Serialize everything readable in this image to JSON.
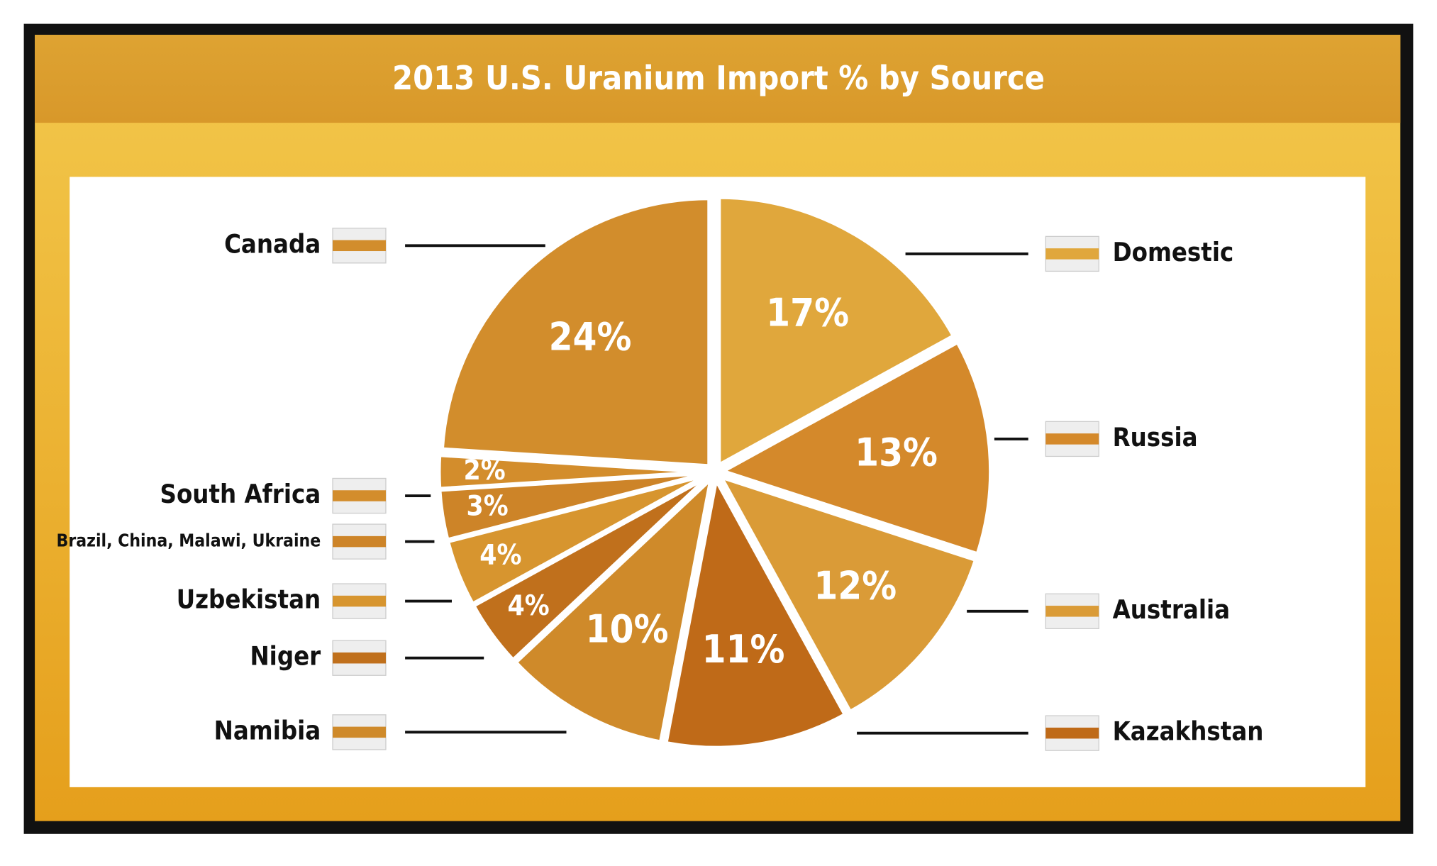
{
  "chart_data": {
    "type": "pie",
    "title": "2013 U.S. Uranium Import % by Source",
    "categories": [
      "Domestic",
      "Russia",
      "Australia",
      "Kazakhstan",
      "Namibia",
      "Niger",
      "Uzbekistan",
      "Brazil, China, Malawi, Ukraine",
      "South Africa",
      "Canada"
    ],
    "values": [
      17,
      13,
      12,
      11,
      10,
      4,
      4,
      3,
      2,
      24
    ],
    "value_labels": [
      "17%",
      "13%",
      "12%",
      "11%",
      "10%",
      "4%",
      "4%",
      "3%",
      "2%",
      "24%"
    ],
    "colors": [
      "#e0a73c",
      "#d4892b",
      "#da9b37",
      "#bf6a18",
      "#cf8a2a",
      "#c0701c",
      "#d7952f",
      "#cd8428",
      "#d38d2c",
      "#d28d2c"
    ]
  }
}
